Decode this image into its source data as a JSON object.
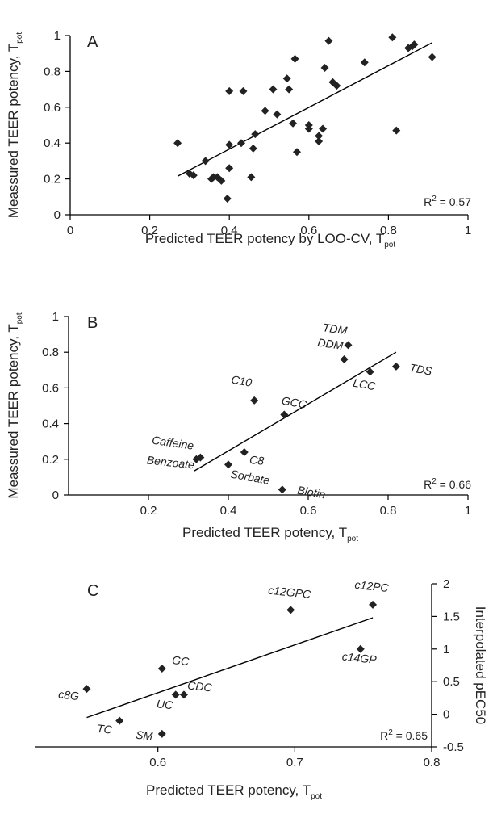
{
  "chart_data": [
    {
      "panel": "A",
      "type": "scatter",
      "xlabel": "Predicted TEER potency by LOO-CV, T",
      "xlabel_sub": "pot",
      "ylabel": "Meassured TEER potency, T",
      "ylabel_sub": "pot",
      "xlim": [
        0,
        1
      ],
      "ylim": [
        0,
        1
      ],
      "xticks": [
        "0",
        "0.2",
        "0.4",
        "0.6",
        "0.8",
        "1"
      ],
      "yticks": [
        "0",
        "0.2",
        "0.4",
        "0.6",
        "0.8",
        "1"
      ],
      "r2_label": "R",
      "r2_sup": "2",
      "r2_value": " = 0.57",
      "fit": [
        [
          0.27,
          0.215
        ],
        [
          0.91,
          0.96
        ]
      ],
      "points": [
        [
          0.27,
          0.4
        ],
        [
          0.3,
          0.23
        ],
        [
          0.31,
          0.22
        ],
        [
          0.34,
          0.3
        ],
        [
          0.355,
          0.2
        ],
        [
          0.36,
          0.21
        ],
        [
          0.37,
          0.21
        ],
        [
          0.38,
          0.19
        ],
        [
          0.395,
          0.09
        ],
        [
          0.4,
          0.26
        ],
        [
          0.4,
          0.39
        ],
        [
          0.4,
          0.69
        ],
        [
          0.43,
          0.4
        ],
        [
          0.435,
          0.69
        ],
        [
          0.455,
          0.21
        ],
        [
          0.46,
          0.37
        ],
        [
          0.465,
          0.45
        ],
        [
          0.49,
          0.58
        ],
        [
          0.51,
          0.7
        ],
        [
          0.52,
          0.56
        ],
        [
          0.545,
          0.76
        ],
        [
          0.55,
          0.7
        ],
        [
          0.56,
          0.51
        ],
        [
          0.565,
          0.87
        ],
        [
          0.57,
          0.35
        ],
        [
          0.6,
          0.5
        ],
        [
          0.6,
          0.48
        ],
        [
          0.625,
          0.41
        ],
        [
          0.625,
          0.44
        ],
        [
          0.635,
          0.48
        ],
        [
          0.64,
          0.82
        ],
        [
          0.65,
          0.97
        ],
        [
          0.66,
          0.74
        ],
        [
          0.67,
          0.72
        ],
        [
          0.74,
          0.85
        ],
        [
          0.81,
          0.99
        ],
        [
          0.82,
          0.47
        ],
        [
          0.85,
          0.93
        ],
        [
          0.86,
          0.94
        ],
        [
          0.865,
          0.95
        ],
        [
          0.91,
          0.88
        ]
      ]
    },
    {
      "panel": "B",
      "type": "scatter",
      "xlabel": "Predicted TEER potency, T",
      "xlabel_sub": "pot",
      "ylabel": "Meassured TEER potency, T",
      "ylabel_sub": "pot",
      "xlim": [
        0,
        1
      ],
      "ylim": [
        0,
        1
      ],
      "xticks": [
        "0.2",
        "0.4",
        "0.6",
        "0.8",
        "1"
      ],
      "yticks": [
        "0",
        "0.2",
        "0.4",
        "0.6",
        "0.8",
        "1"
      ],
      "r2_label": "R",
      "r2_sup": "2",
      "r2_value": " = 0.66",
      "fit": [
        [
          0.315,
          0.135
        ],
        [
          0.82,
          0.8
        ]
      ],
      "points": [
        {
          "x": 0.32,
          "y": 0.2,
          "label": "Caffeine"
        },
        {
          "x": 0.33,
          "y": 0.21,
          "label": "Benzoate"
        },
        {
          "x": 0.44,
          "y": 0.24,
          "label": "C8"
        },
        {
          "x": 0.4,
          "y": 0.17,
          "label": "Sorbate"
        },
        {
          "x": 0.535,
          "y": 0.03,
          "label": "Biotin"
        },
        {
          "x": 0.465,
          "y": 0.53,
          "label": "C10"
        },
        {
          "x": 0.54,
          "y": 0.45,
          "label": "GCC"
        },
        {
          "x": 0.69,
          "y": 0.76,
          "label": "DDM"
        },
        {
          "x": 0.7,
          "y": 0.84,
          "label": "TDM"
        },
        {
          "x": 0.755,
          "y": 0.69,
          "label": "LCC"
        },
        {
          "x": 0.82,
          "y": 0.72,
          "label": "TDS"
        }
      ]
    },
    {
      "panel": "C",
      "type": "scatter",
      "xlabel": "Predicted TEER potency, T",
      "xlabel_sub": "pot",
      "ylabel": "Interpolated pEC50",
      "xlim": [
        0.51,
        0.8
      ],
      "ylim": [
        -0.5,
        2
      ],
      "xticks": [
        "0.6",
        "0.7",
        "0.8"
      ],
      "yticks": [
        "-0.5",
        "0",
        "0.5",
        "1",
        "1.5",
        "2"
      ],
      "r2_label": "R",
      "r2_sup": "2",
      "r2_value": " = 0.65",
      "fit": [
        [
          0.548,
          -0.05
        ],
        [
          0.757,
          1.48
        ]
      ],
      "points": [
        {
          "x": 0.548,
          "y": 0.39,
          "label": "c8G"
        },
        {
          "x": 0.572,
          "y": -0.1,
          "label": "TC"
        },
        {
          "x": 0.603,
          "y": -0.3,
          "label": "SM"
        },
        {
          "x": 0.603,
          "y": 0.7,
          "label": "GC"
        },
        {
          "x": 0.613,
          "y": 0.3,
          "label": "UC"
        },
        {
          "x": 0.619,
          "y": 0.3,
          "label": "CDC"
        },
        {
          "x": 0.697,
          "y": 1.6,
          "label": "c12GPC"
        },
        {
          "x": 0.748,
          "y": 1.0,
          "label": "c14GP"
        },
        {
          "x": 0.757,
          "y": 1.68,
          "label": "c12PC"
        }
      ]
    }
  ]
}
